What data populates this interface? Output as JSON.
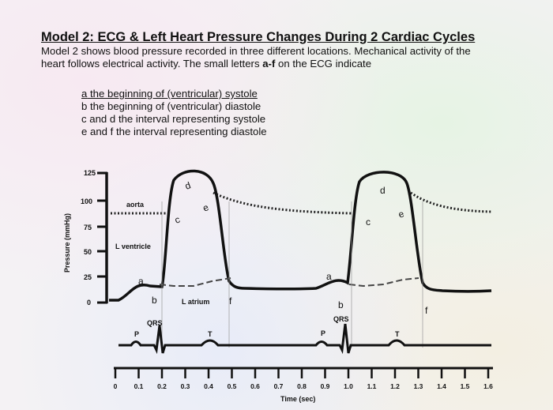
{
  "header": {
    "title": "Model 2: ECG & Left Heart Pressure Changes During 2 Cardiac Cycles",
    "intro": "Model 2 shows blood pressure recorded in three different locations. Mechanical activity of the heart follows electrical activity. The small letters",
    "intro_bold": "a-f",
    "intro_end": "on the ECG indicate"
  },
  "definitions": [
    {
      "letter": "a",
      "text": "the beginning of (ventricular) systole"
    },
    {
      "letter": "b",
      "text": "the beginning of (ventricular) diastole"
    },
    {
      "letter": "c and d",
      "text": "the interval representing systole"
    },
    {
      "letter": "e and f",
      "text": "the interval representing diastole"
    }
  ],
  "chart": {
    "ylabel": "Pressure (mmHg)",
    "xlabel": "Time (sec)",
    "yticks": [
      "125",
      "100",
      "75",
      "50",
      "25",
      "0"
    ],
    "xticks": [
      "0",
      "0.1",
      "0.2",
      "0.3",
      "0.4",
      "0.5",
      "0.6",
      "0.7",
      "0.8",
      "0.9",
      "1.0",
      "1.1",
      "1.2",
      "1.3",
      "1.4",
      "1.5",
      "1.6"
    ],
    "labels": {
      "aorta": "aorta",
      "lventricle": "L ventricle",
      "latrium": "L atrium",
      "qrs1": "QRS",
      "qrs2": "QRS",
      "p1": "P",
      "p2": "P",
      "t1": "T",
      "t2": "T"
    },
    "cycle1": {
      "a": "a",
      "b": "b",
      "c": "c",
      "d": "d",
      "e": "e",
      "f": "f"
    },
    "cycle2": {
      "a": "a",
      "b": "b",
      "c": "c",
      "d": "d",
      "e": "e",
      "f": "f"
    }
  },
  "colors": {
    "text": "#111111",
    "curve": "#111111",
    "dotted": "#222222"
  }
}
